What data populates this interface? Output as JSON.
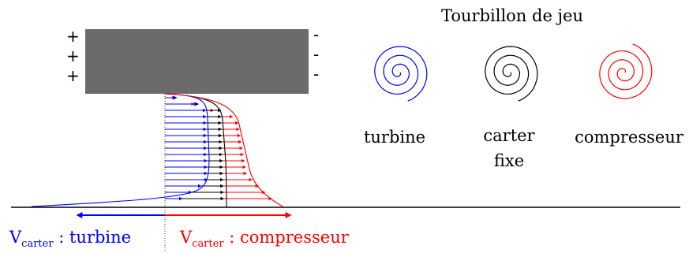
{
  "title": "Tourbillon de jeu",
  "signs_left": [
    "+",
    "+",
    "+"
  ],
  "signs_right": [
    "-",
    "-",
    "-"
  ],
  "vortices": [
    {
      "label": "turbine",
      "color": "#0000ff"
    },
    {
      "label_lines": [
        "carter",
        "fixe"
      ],
      "color": "#000000"
    },
    {
      "label": "compresseur",
      "color": "#ff0000"
    }
  ],
  "bottom_labels": {
    "turbine": {
      "main": "V",
      "sub": "carter",
      "rest": " : turbine",
      "color": "#0000ff"
    },
    "compresseur": {
      "main": "V",
      "sub": "carter",
      "rest": " : compresseur",
      "color": "#ff0000"
    }
  },
  "colors": {
    "blade": "#6b6b6b",
    "turbine": "#0000ff",
    "fixed": "#000000",
    "compressor": "#ff0000"
  }
}
